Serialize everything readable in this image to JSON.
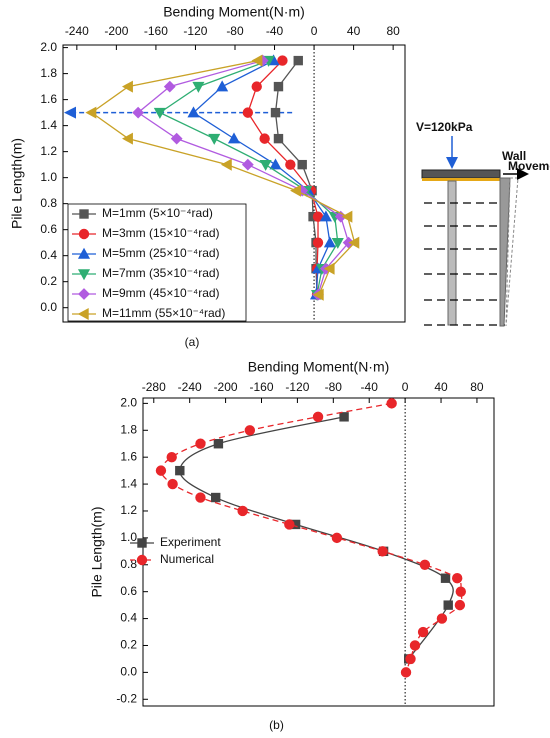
{
  "chart_data": [
    {
      "type": "line",
      "panel_label": "(a)",
      "x_label": "Bending Moment(N·m)",
      "y_label": "Pile Length(m)",
      "xlim": [
        -254,
        92
      ],
      "xticks": [
        -240,
        -200,
        -160,
        -120,
        -80,
        -40,
        0,
        40,
        80
      ],
      "ylim": [
        -0.11,
        2.02
      ],
      "yticks": [
        {
          "value": 0,
          "label": "0.0"
        },
        0.2,
        0.4,
        0.6,
        0.8,
        {
          "value": 1,
          "label": "1.0"
        },
        1.2,
        1.4,
        1.6,
        1.8,
        {
          "value": 2,
          "label": "2.0"
        }
      ],
      "vline": 0,
      "hline": {
        "value": 1.5,
        "color": "#1f5fd6"
      },
      "legend": "lower left",
      "series": [
        {
          "name": "M=1mm  (5×10⁻⁴rad)",
          "color": "#555555",
          "marker": "square",
          "x": [
            -16,
            -36,
            -39,
            -36,
            -12,
            -2,
            -1,
            2,
            2,
            3
          ],
          "y": [
            1.9,
            1.7,
            1.5,
            1.3,
            1.1,
            0.9,
            0.7,
            0.5,
            0.3,
            0.1
          ]
        },
        {
          "name": "M=3mm  (15×10⁻⁴rad)",
          "color": "#e8262a",
          "marker": "circle",
          "x": [
            -32,
            -58,
            -67,
            -50,
            -24,
            -3,
            4,
            4,
            3,
            3
          ],
          "y": [
            1.9,
            1.7,
            1.5,
            1.3,
            1.1,
            0.9,
            0.7,
            0.5,
            0.3,
            0.1
          ]
        },
        {
          "name": "M=5mm  (25×10⁻⁴rad)",
          "color": "#1f5fd6",
          "marker": "triangle-up",
          "x": [
            -41,
            -93,
            -122,
            -81,
            -39,
            -6,
            12,
            16,
            4,
            2
          ],
          "y": [
            1.9,
            1.7,
            1.5,
            1.3,
            1.1,
            0.9,
            0.7,
            0.5,
            0.3,
            0.1
          ]
        },
        {
          "name": "M=7mm  (35×10⁻⁴rad)",
          "color": "#2fae73",
          "marker": "triangle-down",
          "x": [
            -46,
            -117,
            -156,
            -101,
            -49,
            -8,
            21,
            24,
            8,
            3
          ],
          "y": [
            1.9,
            1.7,
            1.5,
            1.3,
            1.1,
            0.9,
            0.7,
            0.5,
            0.3,
            0.1
          ]
        },
        {
          "name": "M=9mm  (45×10⁻⁴rad)",
          "color": "#b15be0",
          "marker": "diamond",
          "x": [
            -52,
            -146,
            -178,
            -139,
            -67,
            -12,
            27,
            35,
            12,
            4
          ],
          "y": [
            1.9,
            1.7,
            1.5,
            1.3,
            1.1,
            0.9,
            0.7,
            0.5,
            0.3,
            0.1
          ]
        },
        {
          "name": "M=11mm  (55×10⁻⁴rad)",
          "color": "#c9a227",
          "marker": "triangle-left",
          "x": [
            -57,
            -188,
            -225,
            -188,
            -88,
            -18,
            34,
            41,
            16,
            5
          ],
          "y": [
            1.9,
            1.7,
            1.5,
            1.3,
            1.1,
            0.9,
            0.7,
            0.5,
            0.3,
            0.1
          ]
        }
      ]
    },
    {
      "type": "line",
      "panel_label": "(b)",
      "x_label": "Bending Moment(N·m)",
      "y_label": "Pile Length(m)",
      "xlim": [
        -292,
        99
      ],
      "xticks": [
        -280,
        -240,
        -200,
        -160,
        -120,
        -80,
        -40,
        0,
        40,
        80
      ],
      "ylim": [
        -0.25,
        2.04
      ],
      "yticks": [
        -0.2,
        {
          "value": 0,
          "label": "0.0"
        },
        0.2,
        0.4,
        0.6,
        0.8,
        {
          "value": 1,
          "label": "1.0"
        },
        1.2,
        1.4,
        1.6,
        1.8,
        {
          "value": 2,
          "label": "2.0"
        }
      ],
      "vline": 0,
      "legend": "middle left",
      "series": [
        {
          "name": "Experiment",
          "color": "#444444",
          "marker": "square",
          "smooth": true,
          "x": [
            -68,
            -208,
            -251,
            -211,
            -122,
            -24,
            45,
            48,
            4
          ],
          "y": [
            1.9,
            1.7,
            1.5,
            1.3,
            1.1,
            0.9,
            0.7,
            0.5,
            0.1
          ]
        },
        {
          "name": "Numerical",
          "color": "#e8262a",
          "marker": "circle",
          "dashed": true,
          "smooth": true,
          "x": [
            -15,
            -97,
            -173,
            -228,
            -260,
            -272,
            -259,
            -228,
            -181,
            -129,
            -76,
            -25,
            22,
            58,
            62,
            61,
            41,
            20,
            11,
            6,
            1
          ],
          "y": [
            2.0,
            1.9,
            1.8,
            1.7,
            1.6,
            1.5,
            1.4,
            1.3,
            1.2,
            1.1,
            1.0,
            0.9,
            0.8,
            0.7,
            0.6,
            0.5,
            0.4,
            0.3,
            0.2,
            0.1,
            0.0
          ]
        }
      ]
    }
  ],
  "schematic": {
    "load_label": "V=120kPa",
    "wall_label": [
      "Wall",
      "Movement"
    ]
  }
}
